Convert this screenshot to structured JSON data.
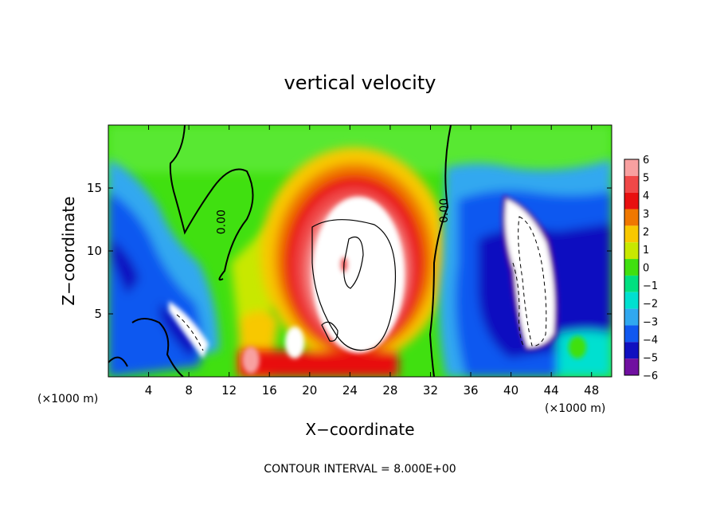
{
  "chart_data": {
    "type": "heatmap",
    "title": "vertical velocity",
    "xlabel": "X−coordinate",
    "ylabel": "Z−coordinate",
    "x_unit_left": "(×1000 m)",
    "x_unit_right": "(×1000 m)",
    "xlim": [
      0,
      50
    ],
    "ylim": [
      0,
      20
    ],
    "x_ticks": [
      4,
      8,
      12,
      16,
      20,
      24,
      28,
      32,
      36,
      40,
      44,
      48
    ],
    "y_ticks": [
      5,
      10,
      15
    ],
    "colorbar": {
      "levels": [
        6,
        5,
        4,
        3,
        2,
        1,
        0,
        -1,
        -2,
        -3,
        -4,
        -5,
        -6
      ],
      "labels": [
        "6",
        "5",
        "4",
        "3",
        "2",
        "1",
        "0",
        "−1",
        "−2",
        "−3",
        "−4",
        "−5",
        "−6"
      ],
      "colors": [
        "#f8a0a0",
        "#f04848",
        "#e81010",
        "#f07800",
        "#f8c800",
        "#c8e800",
        "#40e010",
        "#00e080",
        "#00e0d0",
        "#30a8f0",
        "#1058f0",
        "#1010c0",
        "#7010a0"
      ]
    },
    "contour_labels": [
      {
        "text": "0.00",
        "x": 11.6,
        "y": 12.3
      },
      {
        "text": "0.00",
        "x": 33.7,
        "y": 13.2
      }
    ],
    "features": [
      {
        "kind": "updraft",
        "x": 23.8,
        "z": 9.0,
        "max_level": "above 6"
      },
      {
        "kind": "downdraft",
        "x": 42.5,
        "z": 8.5,
        "min_level": "below -6"
      },
      {
        "kind": "downdraft",
        "x": 7.5,
        "z": 4.5,
        "min_level": "below -6"
      }
    ],
    "footnote": "CONTOUR INTERVAL = 8.000E+00"
  }
}
